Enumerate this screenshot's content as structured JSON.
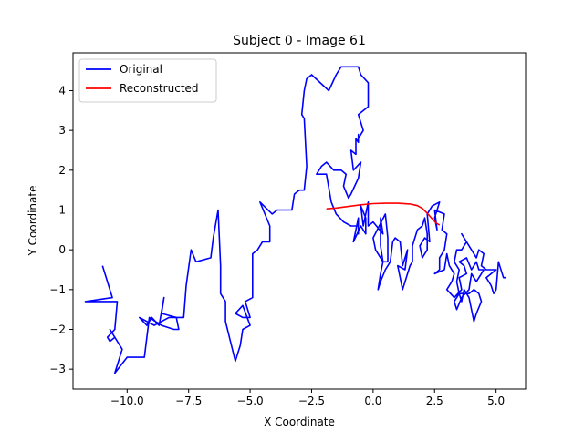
{
  "chart_data": {
    "type": "line",
    "title": "Subject 0 - Image 61",
    "xlabel": "X Coordinate",
    "ylabel": "Y Coordinate",
    "xlim": [
      -12.2,
      6.2
    ],
    "ylim": [
      -3.5,
      4.95
    ],
    "xticks": [
      -10.0,
      -7.5,
      -5.0,
      -2.5,
      0.0,
      2.5,
      5.0
    ],
    "xtick_labels": [
      "−10.0",
      "−7.5",
      "−5.0",
      "−2.5",
      "0.0",
      "2.5",
      "5.0"
    ],
    "yticks": [
      -3,
      -2,
      -1,
      0,
      1,
      2,
      3,
      4
    ],
    "ytick_labels": [
      "−3",
      "−2",
      "−1",
      "0",
      "1",
      "2",
      "3",
      "4"
    ],
    "grid": false,
    "legend_position": "top-left",
    "series": [
      {
        "name": "Original",
        "color": "#0000ff",
        "points": [
          [
            -11.0,
            -0.4
          ],
          [
            -10.6,
            -1.2
          ],
          [
            -11.7,
            -1.3
          ],
          [
            -10.4,
            -1.3
          ],
          [
            -10.5,
            -2.0
          ],
          [
            -10.8,
            -2.2
          ],
          [
            -10.7,
            -2.3
          ],
          [
            -10.5,
            -2.2
          ],
          [
            -10.7,
            -2.0
          ],
          [
            -10.2,
            -2.5
          ],
          [
            -10.5,
            -3.1
          ],
          [
            -10.0,
            -2.7
          ],
          [
            -9.3,
            -2.7
          ],
          [
            -9.1,
            -1.7
          ],
          [
            -8.6,
            -1.9
          ],
          [
            -8.1,
            -2.0
          ],
          [
            -7.9,
            -2.0
          ],
          [
            -8.0,
            -1.7
          ],
          [
            -8.6,
            -1.6
          ],
          [
            -8.5,
            -1.2
          ],
          [
            -8.7,
            -1.9
          ],
          [
            -9.0,
            -1.7
          ],
          [
            -9.2,
            -1.9
          ],
          [
            -9.5,
            -1.7
          ],
          [
            -8.9,
            -1.9
          ],
          [
            -8.3,
            -1.7
          ],
          [
            -7.7,
            -1.7
          ],
          [
            -7.6,
            -0.9
          ],
          [
            -7.4,
            0.0
          ],
          [
            -7.2,
            -0.3
          ],
          [
            -6.6,
            -0.2
          ],
          [
            -6.5,
            0.3
          ],
          [
            -6.3,
            1.0
          ],
          [
            -6.2,
            -0.4
          ],
          [
            -6.2,
            -1.1
          ],
          [
            -6.0,
            -1.3
          ],
          [
            -6.0,
            -1.8
          ],
          [
            -5.6,
            -2.8
          ],
          [
            -5.4,
            -2.4
          ],
          [
            -5.3,
            -2.0
          ],
          [
            -5.0,
            -1.9
          ],
          [
            -5.3,
            -1.4
          ],
          [
            -5.6,
            -1.6
          ],
          [
            -5.3,
            -1.7
          ],
          [
            -5.0,
            -1.7
          ],
          [
            -5.2,
            -1.3
          ],
          [
            -4.9,
            -1.2
          ],
          [
            -4.9,
            -0.1
          ],
          [
            -4.7,
            0.0
          ],
          [
            -4.5,
            0.2
          ],
          [
            -4.2,
            0.2
          ],
          [
            -4.2,
            0.6
          ],
          [
            -4.6,
            1.2
          ],
          [
            -4.1,
            0.9
          ],
          [
            -3.9,
            1.0
          ],
          [
            -3.3,
            1.0
          ],
          [
            -3.2,
            1.4
          ],
          [
            -3.0,
            1.5
          ],
          [
            -2.8,
            1.5
          ],
          [
            -2.7,
            2.1
          ],
          [
            -2.8,
            3.3
          ],
          [
            -2.9,
            3.4
          ],
          [
            -2.8,
            4.0
          ],
          [
            -2.7,
            4.3
          ],
          [
            -2.5,
            4.4
          ],
          [
            -1.8,
            4.0
          ],
          [
            -1.5,
            4.4
          ],
          [
            -1.3,
            4.6
          ],
          [
            -0.6,
            4.6
          ],
          [
            -0.5,
            4.4
          ],
          [
            -0.2,
            4.2
          ],
          [
            -0.2,
            3.6
          ],
          [
            -0.6,
            3.4
          ],
          [
            -0.5,
            3.2
          ],
          [
            -0.4,
            3.0
          ],
          [
            -0.6,
            2.8
          ],
          [
            -0.6,
            2.9
          ],
          [
            -0.6,
            2.7
          ],
          [
            -0.7,
            2.8
          ],
          [
            -0.7,
            2.4
          ],
          [
            -0.9,
            2.5
          ],
          [
            -0.8,
            2.0
          ],
          [
            -0.5,
            2.2
          ],
          [
            -0.6,
            1.8
          ],
          [
            -0.9,
            1.4
          ],
          [
            -1.0,
            1.3
          ],
          [
            -1.2,
            1.6
          ],
          [
            -1.1,
            1.9
          ],
          [
            -1.3,
            2.0
          ],
          [
            -1.6,
            2.0
          ],
          [
            -1.9,
            2.2
          ],
          [
            -2.1,
            2.1
          ],
          [
            -2.3,
            1.9
          ],
          [
            -1.9,
            1.9
          ],
          [
            -1.7,
            1.2
          ],
          [
            -1.5,
            0.9
          ],
          [
            -1.2,
            0.7
          ],
          [
            -0.9,
            0.6
          ],
          [
            -0.6,
            0.6
          ],
          [
            -0.6,
            0.4
          ],
          [
            -0.6,
            0.8
          ],
          [
            -0.8,
            0.2
          ],
          [
            -0.5,
            0.6
          ],
          [
            -0.3,
            0.4
          ],
          [
            -0.3,
            0.8
          ],
          [
            -0.5,
            1.1
          ],
          [
            -0.4,
            0.6
          ],
          [
            -0.2,
            1.2
          ],
          [
            -0.2,
            0.8
          ],
          [
            -0.2,
            0.6
          ],
          [
            0.0,
            0.7
          ],
          [
            0.4,
            0.4
          ],
          [
            0.3,
            0.8
          ],
          [
            0.3,
            0.1
          ],
          [
            0.4,
            -0.3
          ],
          [
            0.1,
            0.0
          ],
          [
            0.0,
            0.3
          ],
          [
            0.5,
            0.9
          ],
          [
            0.6,
            0.3
          ],
          [
            0.6,
            -0.3
          ],
          [
            0.4,
            -0.3
          ],
          [
            0.3,
            -0.6
          ],
          [
            0.2,
            -1.0
          ],
          [
            0.3,
            -0.8
          ],
          [
            0.5,
            -0.5
          ],
          [
            0.7,
            -0.3
          ],
          [
            0.8,
            0.2
          ],
          [
            0.9,
            0.3
          ],
          [
            1.1,
            0.2
          ],
          [
            1.2,
            -0.4
          ],
          [
            1.4,
            0.0
          ],
          [
            1.3,
            -0.5
          ],
          [
            1.0,
            -0.4
          ],
          [
            1.1,
            -0.7
          ],
          [
            1.2,
            -1.0
          ],
          [
            1.3,
            -0.8
          ],
          [
            1.5,
            -0.4
          ],
          [
            1.6,
            -0.3
          ],
          [
            1.6,
            0.1
          ],
          [
            1.8,
            0.5
          ],
          [
            2.0,
            0.6
          ],
          [
            2.1,
            0.8
          ],
          [
            2.2,
            0.4
          ],
          [
            2.2,
            0.0
          ],
          [
            2.0,
            -0.2
          ],
          [
            1.9,
            0.1
          ],
          [
            2.1,
            0.3
          ],
          [
            2.3,
            0.2
          ],
          [
            2.2,
            0.9
          ],
          [
            2.4,
            1.1
          ],
          [
            2.7,
            1.2
          ],
          [
            2.5,
            0.8
          ],
          [
            2.6,
            0.5
          ],
          [
            2.5,
            1.0
          ],
          [
            2.9,
            0.9
          ],
          [
            2.8,
            0.5
          ],
          [
            3.0,
            0.4
          ],
          [
            2.9,
            0.0
          ],
          [
            2.7,
            -0.2
          ],
          [
            2.7,
            -0.5
          ],
          [
            2.5,
            -0.6
          ],
          [
            2.9,
            -0.5
          ],
          [
            3.0,
            -0.1
          ],
          [
            3.1,
            -0.4
          ],
          [
            3.3,
            -0.6
          ],
          [
            3.2,
            -0.8
          ],
          [
            3.0,
            -1.0
          ],
          [
            3.3,
            -1.2
          ],
          [
            3.6,
            -1.0
          ],
          [
            3.5,
            -0.7
          ],
          [
            3.8,
            -0.6
          ],
          [
            3.7,
            -0.4
          ],
          [
            3.5,
            -0.3
          ],
          [
            3.8,
            -0.2
          ],
          [
            4.0,
            -0.5
          ],
          [
            4.2,
            -0.3
          ],
          [
            4.3,
            -0.5
          ],
          [
            4.5,
            -0.5
          ],
          [
            4.4,
            -0.6
          ],
          [
            4.2,
            -0.8
          ],
          [
            4.0,
            -0.6
          ],
          [
            3.9,
            -1.0
          ],
          [
            3.6,
            -1.2
          ],
          [
            3.4,
            -1.5
          ],
          [
            3.3,
            -1.3
          ],
          [
            3.5,
            -1.1
          ],
          [
            3.9,
            -1.1
          ],
          [
            4.1,
            -1.0
          ],
          [
            4.3,
            -1.1
          ],
          [
            4.4,
            -1.3
          ],
          [
            4.2,
            -1.6
          ],
          [
            4.1,
            -1.8
          ],
          [
            4.0,
            -1.5
          ],
          [
            3.9,
            -1.2
          ],
          [
            3.7,
            -1.0
          ],
          [
            3.6,
            -1.3
          ],
          [
            3.5,
            -1.1
          ],
          [
            3.4,
            -0.8
          ],
          [
            3.5,
            -0.5
          ],
          [
            3.3,
            -0.3
          ],
          [
            3.4,
            0.0
          ],
          [
            3.6,
            0.0
          ],
          [
            3.8,
            0.2
          ],
          [
            3.6,
            0.4
          ],
          [
            4.0,
            0.0
          ],
          [
            4.2,
            -0.2
          ],
          [
            4.3,
            0.0
          ],
          [
            4.5,
            -0.1
          ],
          [
            4.4,
            -0.4
          ],
          [
            4.6,
            -0.5
          ],
          [
            5.0,
            -0.5
          ],
          [
            4.6,
            -0.7
          ],
          [
            4.8,
            -0.9
          ],
          [
            4.9,
            -1.1
          ],
          [
            5.0,
            -1.0
          ],
          [
            5.1,
            -0.3
          ],
          [
            5.3,
            -0.7
          ],
          [
            5.4,
            -0.7
          ]
        ]
      },
      {
        "name": "Reconstructed",
        "color": "#ff0000",
        "points": [
          [
            -1.9,
            1.03
          ],
          [
            -1.5,
            1.05
          ],
          [
            -1.0,
            1.09
          ],
          [
            -0.5,
            1.13
          ],
          [
            0.0,
            1.16
          ],
          [
            0.5,
            1.17
          ],
          [
            1.0,
            1.17
          ],
          [
            1.5,
            1.15
          ],
          [
            1.8,
            1.11
          ],
          [
            2.0,
            1.04
          ],
          [
            2.2,
            0.92
          ],
          [
            2.4,
            0.78
          ],
          [
            2.55,
            0.68
          ],
          [
            2.7,
            0.62
          ]
        ]
      }
    ]
  }
}
